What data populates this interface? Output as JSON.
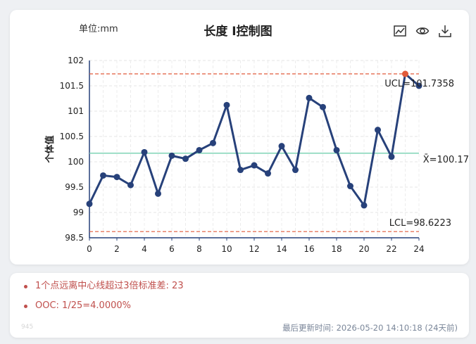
{
  "header": {
    "unit": "单位:mm",
    "title": "长度 I控制图"
  },
  "toolbar": {
    "icons": [
      "line-chart-icon",
      "eye-icon",
      "download-icon"
    ]
  },
  "chart_data": {
    "type": "line",
    "title": "长度 I控制图",
    "ylabel": "个体值",
    "xlabel": "",
    "x": [
      0,
      1,
      2,
      3,
      4,
      5,
      6,
      7,
      8,
      9,
      10,
      11,
      12,
      13,
      14,
      15,
      16,
      17,
      18,
      19,
      20,
      21,
      22,
      23,
      24
    ],
    "values": [
      99.17,
      99.73,
      99.7,
      99.54,
      100.19,
      99.37,
      100.12,
      100.06,
      100.23,
      100.37,
      101.12,
      99.84,
      99.93,
      99.77,
      100.31,
      99.84,
      101.26,
      101.08,
      100.23,
      99.52,
      99.14,
      100.63,
      100.1,
      101.7358,
      101.5
    ],
    "ylim": [
      98.5,
      102
    ],
    "xlim": [
      0,
      24
    ],
    "yticks": [
      "98.5",
      "99",
      "99.5",
      "100",
      "100.5",
      "101",
      "101.5",
      "102"
    ],
    "xticks": [
      "0",
      "2",
      "4",
      "6",
      "8",
      "10",
      "12",
      "14",
      "16",
      "18",
      "20",
      "22",
      "24"
    ],
    "ucl": 101.7358,
    "lcl": 98.6223,
    "center": 100.17,
    "ucl_label": "UCL=101.7358",
    "lcl_label": "LCL=98.6223",
    "center_label": "X̄=100.17",
    "out_of_control_index": 23,
    "grid": true,
    "colors": {
      "series": "#27417a",
      "limit": "#e05a3a",
      "center": "#7fd4b5",
      "ooc_point": "#e05a3a"
    }
  },
  "info": {
    "items": [
      "1个点远离中心线超过3倍标准差: 23",
      "OOC: 1/25=4.0000%"
    ],
    "faint_id": "945",
    "update_time": "最后更新时间: 2026-05-20 14:10:18 (24天前)"
  }
}
